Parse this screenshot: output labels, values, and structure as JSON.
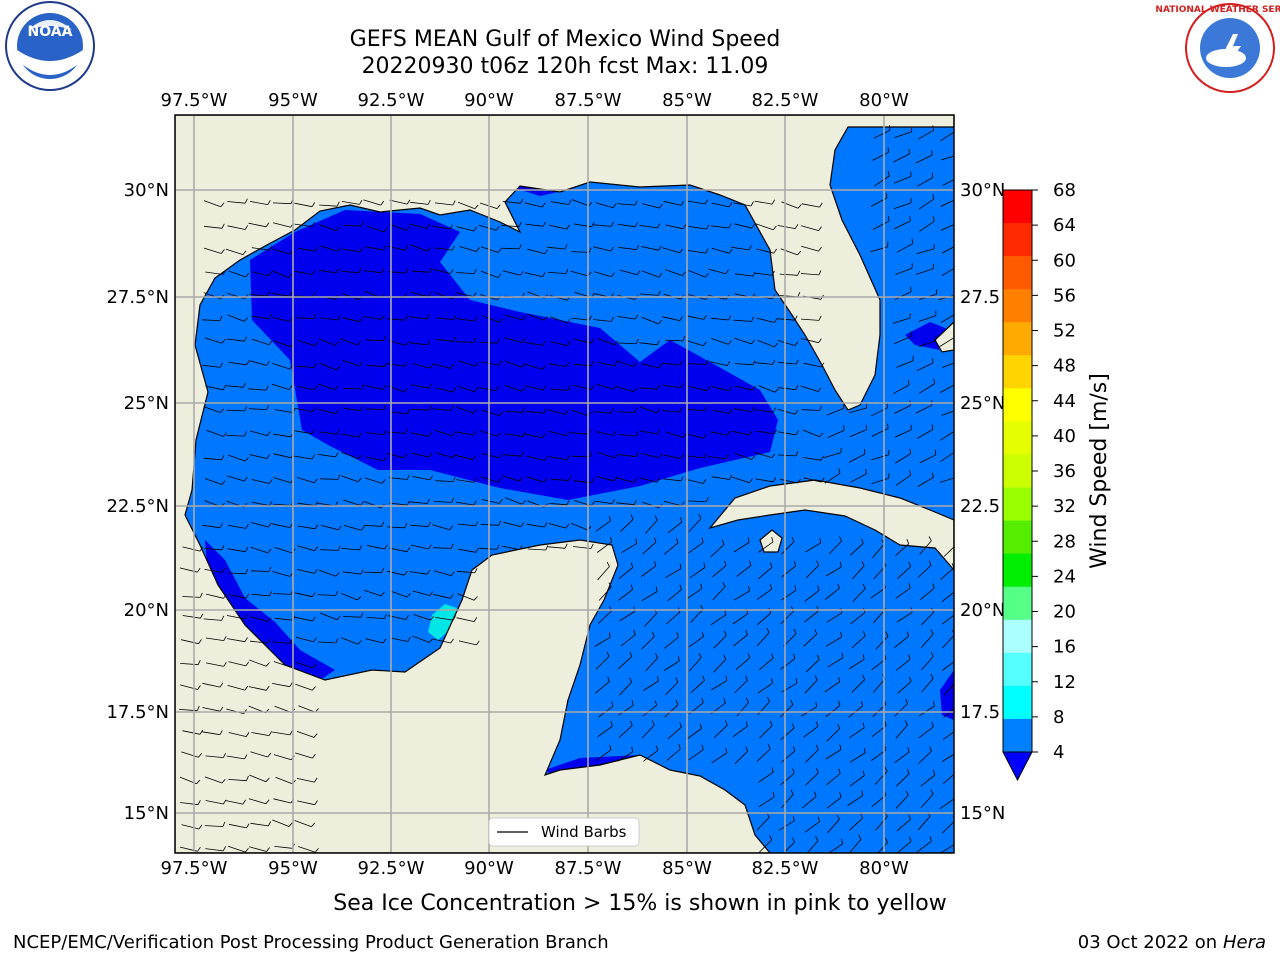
{
  "title_line1": "GEFS MEAN Gulf of Mexico Wind Speed",
  "title_line2": "20220930 t06z 120h fcst   Max: 11.09",
  "lon_labels": [
    "97.5°W",
    "95°W",
    "92.5°W",
    "90°W",
    "87.5°W",
    "85°W",
    "82.5°W",
    "80°W"
  ],
  "lat_labels": [
    "30°N",
    "27.5°N",
    "25°N",
    "22.5°N",
    "20°N",
    "17.5°N",
    "15°N"
  ],
  "lat_labels_right": [
    "30°N",
    "27.5",
    "25°N",
    "22.5",
    "20°N",
    "17.5",
    "15°N"
  ],
  "legend_label": "Wind Barbs",
  "colorbar": {
    "label": "Wind Speed [m/s]",
    "ticks": [
      "68",
      "64",
      "60",
      "56",
      "52",
      "48",
      "44",
      "40",
      "36",
      "32",
      "28",
      "24",
      "20",
      "16",
      "12",
      "8",
      "4"
    ],
    "colors": [
      "#ff0000",
      "#ff2a00",
      "#ff5a00",
      "#ff8000",
      "#ffaa00",
      "#ffd400",
      "#ffff00",
      "#e6ff00",
      "#ccff00",
      "#99ff00",
      "#55ee00",
      "#00ee00",
      "#55ff88",
      "#aaffff",
      "#55ffff",
      "#00ffff",
      "#0080ff"
    ],
    "under_color": "#0000ff"
  },
  "colors": {
    "land": "#eeeedc",
    "ocean_low": "#0000ee",
    "ocean_mid": "#0077ff",
    "cyan": "#00e5e5"
  },
  "note": "Sea Ice Concentration > 15% is shown in pink to yellow",
  "footer_left": "NCEP/EMC/Verification Post Processing Product Generation Branch",
  "footer_right_date": "03 Oct 2022 on",
  "footer_right_host": "Hera",
  "logos": {
    "left": "NOAA",
    "right": "NATIONAL WEATHER SERVICE"
  }
}
